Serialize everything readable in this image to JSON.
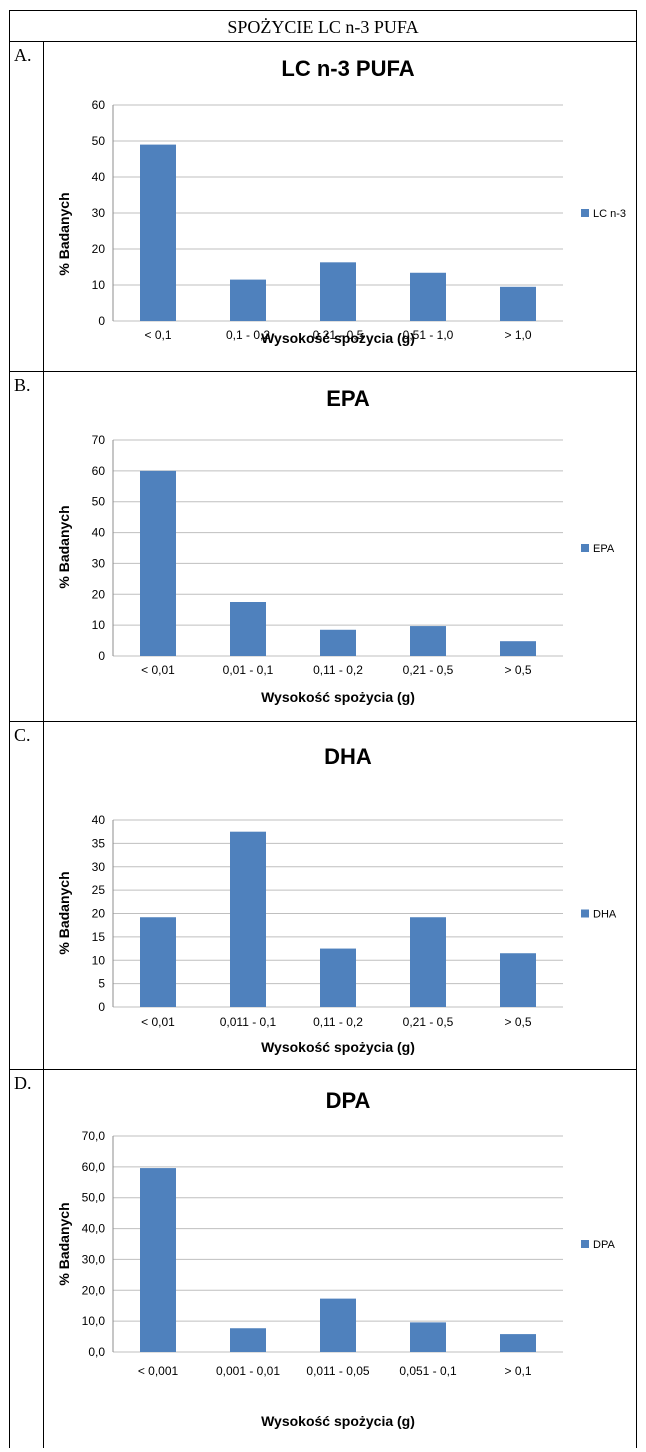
{
  "header": {
    "title": "SPOŻYCIE LC n-3 PUFA"
  },
  "chart_data": [
    {
      "panel": "A.",
      "type": "bar",
      "title": "LC n-3 PUFA",
      "xlabel": "Wysokość spożycia (g)",
      "ylabel": "% Badanych",
      "categories": [
        "< 0,1",
        "0,1 - 0,2",
        "0,21 - 0,5",
        "0,51 - 1,0",
        "> 1,0"
      ],
      "series": [
        {
          "name": "LC n-3",
          "values": [
            49,
            11.5,
            16.3,
            13.4,
            9.5
          ]
        }
      ],
      "ylim": [
        0,
        60
      ],
      "yticks": [
        "0",
        "10",
        "20",
        "30",
        "40",
        "50",
        "60"
      ],
      "grid": true,
      "legend": "right",
      "color": "#4f81bd"
    },
    {
      "panel": "B.",
      "type": "bar",
      "title": "EPA",
      "xlabel": "Wysokość spożycia (g)",
      "ylabel": "% Badanych",
      "categories": [
        "< 0,01",
        "0,01 - 0,1",
        "0,11 - 0,2",
        "0,21 - 0,5",
        "> 0,5"
      ],
      "series": [
        {
          "name": "EPA",
          "values": [
            60,
            17.5,
            8.5,
            9.7,
            4.8
          ]
        }
      ],
      "ylim": [
        0,
        70
      ],
      "yticks": [
        "0",
        "10",
        "20",
        "30",
        "40",
        "50",
        "60",
        "70"
      ],
      "grid": true,
      "legend": "right",
      "color": "#4f81bd"
    },
    {
      "panel": "C.",
      "type": "bar",
      "title": "DHA",
      "xlabel": "Wysokość spożycia (g)",
      "ylabel": "% Badanych",
      "categories": [
        "< 0,01",
        "0,011 - 0,1",
        "0,11 - 0,2",
        "0,21 - 0,5",
        "> 0,5"
      ],
      "series": [
        {
          "name": "DHA",
          "values": [
            19.2,
            37.5,
            12.5,
            19.2,
            11.5
          ]
        }
      ],
      "ylim": [
        0,
        40
      ],
      "yticks": [
        "0",
        "5",
        "10",
        "15",
        "20",
        "25",
        "30",
        "35",
        "40"
      ],
      "grid": true,
      "legend": "right",
      "color": "#4f81bd"
    },
    {
      "panel": "D.",
      "type": "bar",
      "title": "DPA",
      "xlabel": "Wysokość spożycia (g)",
      "ylabel": "% Badanych",
      "categories": [
        "< 0,001",
        "0,001 - 0,01",
        "0,011 - 0,05",
        "0,051 - 0,1",
        "> 0,1"
      ],
      "series": [
        {
          "name": "DPA",
          "values": [
            59.6,
            7.7,
            17.3,
            9.6,
            5.8
          ]
        }
      ],
      "ylim": [
        0,
        70
      ],
      "yticks": [
        "0,0",
        "10,0",
        "20,0",
        "30,0",
        "40,0",
        "50,0",
        "60,0",
        "70,0"
      ],
      "grid": true,
      "legend": "right",
      "color": "#4f81bd"
    }
  ]
}
